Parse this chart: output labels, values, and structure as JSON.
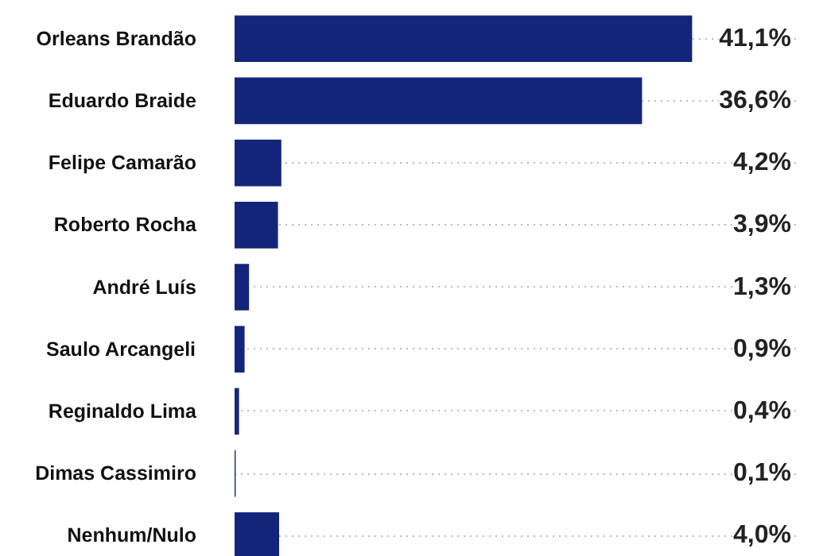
{
  "chart_data": {
    "type": "bar",
    "orientation": "horizontal",
    "categories": [
      "Orleans Brandão",
      "Eduardo Braide",
      "Felipe Camarão",
      "Roberto Rocha",
      "André Luís",
      "Saulo Arcangeli",
      "Reginaldo Lima",
      "Dimas Cassimiro",
      "Nenhum/Nulo"
    ],
    "values": [
      41.1,
      36.6,
      4.2,
      3.9,
      1.3,
      0.9,
      0.4,
      0.1,
      4.0
    ],
    "value_labels": [
      "41,1%",
      "36,6%",
      "4,2%",
      "3,9%",
      "1,3%",
      "0,9%",
      "0,4%",
      "0,1%",
      "4,0%"
    ],
    "color": "#13257a",
    "grid": "y"
  }
}
